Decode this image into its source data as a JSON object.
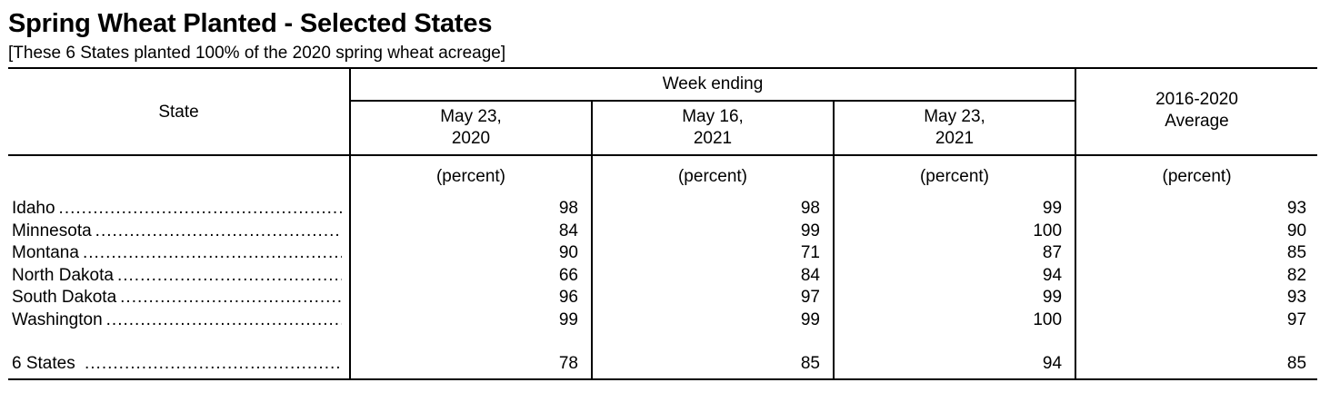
{
  "title": "Spring Wheat Planted - Selected States",
  "subtitle": "[These 6 States planted 100% of the 2020 spring wheat acreage]",
  "table": {
    "state_header": "State",
    "group_header": "Week ending",
    "columns": [
      {
        "line1": "May 23,",
        "line2": "2020"
      },
      {
        "line1": "May 16,",
        "line2": "2021"
      },
      {
        "line1": "May 23,",
        "line2": "2021"
      }
    ],
    "avg_header": {
      "line1": "2016-2020",
      "line2": "Average"
    },
    "units": [
      "(percent)",
      "(percent)",
      "(percent)",
      "(percent)"
    ],
    "rows": [
      {
        "state": "Idaho",
        "values": [
          "98",
          "98",
          "99",
          "93"
        ]
      },
      {
        "state": "Minnesota",
        "values": [
          "84",
          "99",
          "100",
          "90"
        ]
      },
      {
        "state": "Montana",
        "values": [
          "90",
          "71",
          "87",
          "85"
        ]
      },
      {
        "state": "North Dakota",
        "values": [
          "66",
          "84",
          "94",
          "82"
        ]
      },
      {
        "state": "South Dakota",
        "values": [
          "96",
          "97",
          "99",
          "93"
        ]
      },
      {
        "state": "Washington",
        "values": [
          "99",
          "99",
          "100",
          "97"
        ]
      }
    ],
    "total": {
      "state": "6 States",
      "values": [
        "78",
        "85",
        "94",
        "85"
      ]
    }
  }
}
